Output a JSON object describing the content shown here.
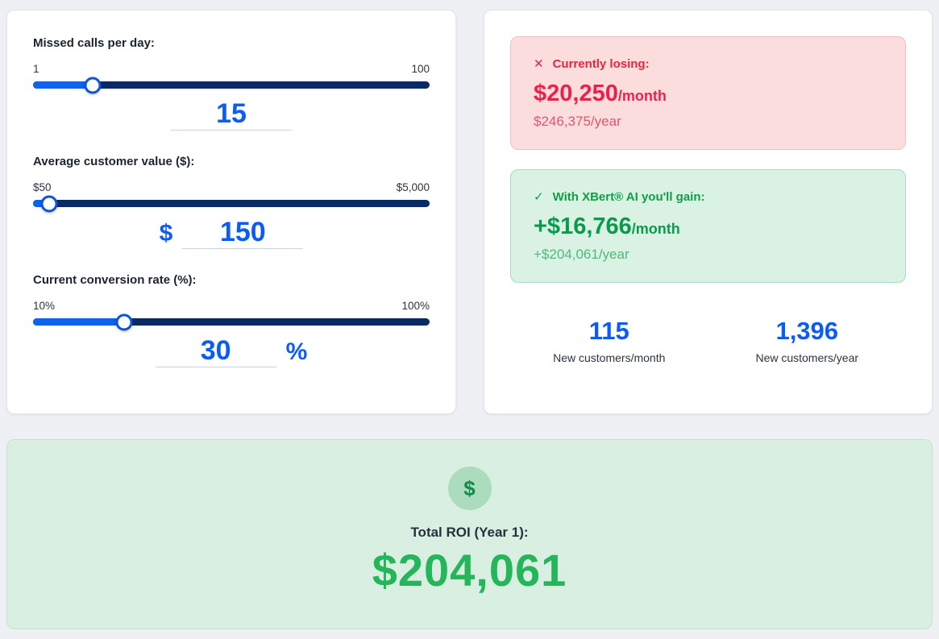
{
  "inputs": {
    "missed_calls": {
      "label": "Missed calls per day:",
      "min": "1",
      "max": "100",
      "value": "15",
      "percent": 15
    },
    "customer_value": {
      "label": "Average customer value ($):",
      "min": "$50",
      "max": "$5,000",
      "prefix": "$",
      "value": "150",
      "percent": 4
    },
    "conversion_rate": {
      "label": "Current conversion rate (%):",
      "min": "10%",
      "max": "100%",
      "value": "30",
      "suffix": "%",
      "percent": 23
    }
  },
  "results": {
    "losing": {
      "icon": "✕",
      "title": "Currently losing:",
      "amount": "$20,250",
      "period": "/month",
      "yearly": "$246,375/year"
    },
    "gain": {
      "icon": "✓",
      "title": "With XBert® AI you'll gain:",
      "amount": "+$16,766",
      "period": "/month",
      "yearly": "+$204,061/year"
    },
    "customers_month": {
      "value": "115",
      "label": "New customers/month"
    },
    "customers_year": {
      "value": "1,396",
      "label": "New customers/year"
    }
  },
  "roi": {
    "icon": "$",
    "title": "Total ROI (Year 1):",
    "value": "$204,061"
  },
  "colors": {
    "accent_blue": "#0b5cf5",
    "slider_track_navy": "#0a2a66",
    "slider_fill_blue": "#0d63f0",
    "loss_red": "#ee2049",
    "loss_bg": "#fbdddd",
    "gain_green": "#0a9a4e",
    "gain_bg": "#d9f2e3",
    "roi_green": "#25b55a",
    "roi_bg": "#d9efe1"
  }
}
